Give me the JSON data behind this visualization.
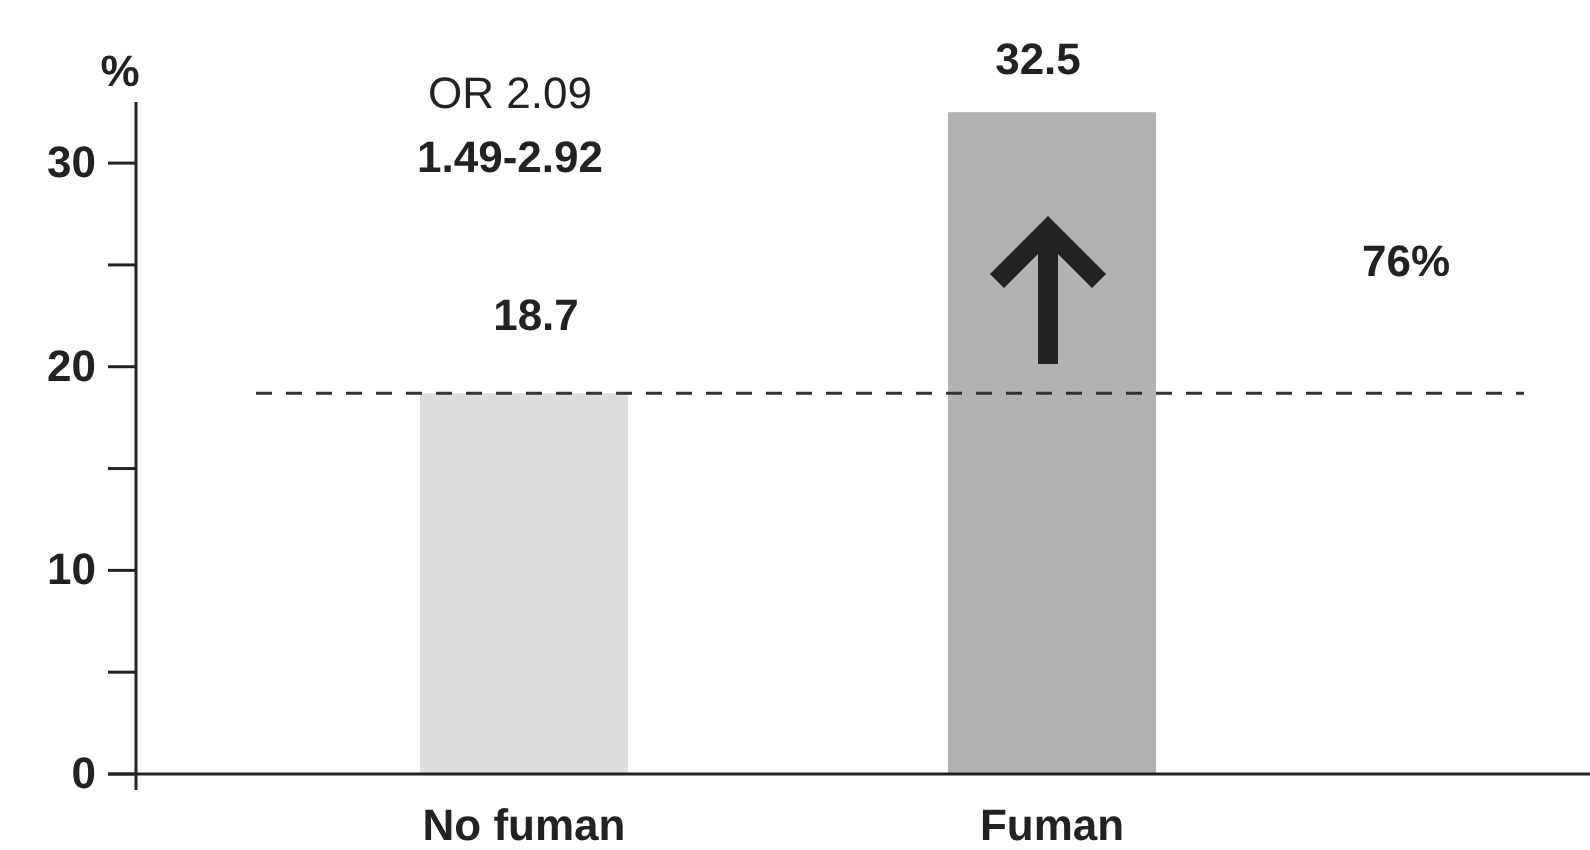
{
  "chart_data": {
    "type": "bar",
    "ylabel": "%",
    "categories": [
      "No fuman",
      "Fuman"
    ],
    "values": [
      18.7,
      32.5
    ],
    "colors": [
      "#dcdddf",
      "#b1b2b4"
    ],
    "ylim": [
      0,
      33
    ],
    "yticks": [
      0,
      10,
      20,
      30
    ],
    "data_labels": true,
    "ref_lines": [
      {
        "axis": "y",
        "value": 18.7,
        "line_style": "dashed",
        "color": "#333333"
      }
    ],
    "annotations": [
      "OR 2.09",
      "1.49-2.92",
      "76%"
    ]
  }
}
